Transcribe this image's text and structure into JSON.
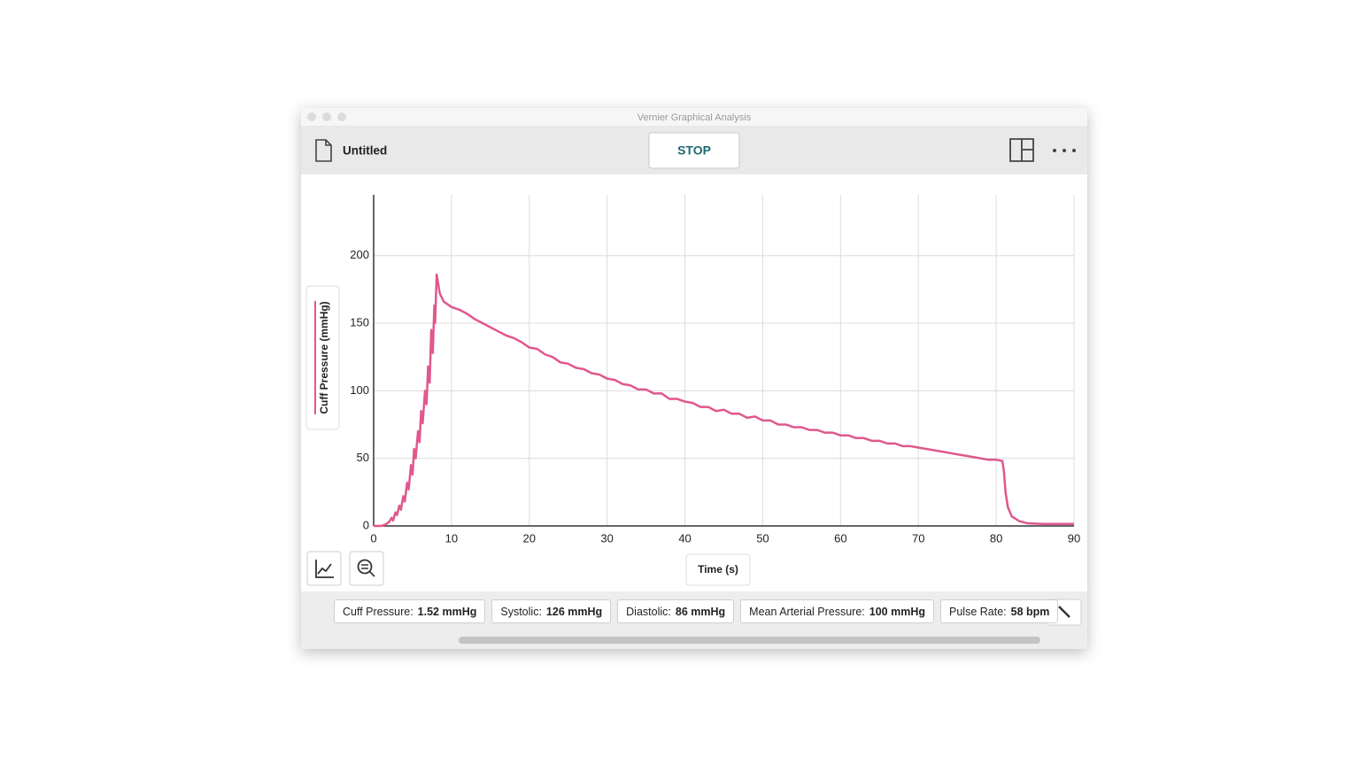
{
  "window": {
    "title": "Vernier Graphical Analysis"
  },
  "toolbar": {
    "file_name": "Untitled",
    "stop_button": "STOP"
  },
  "chart_data": {
    "type": "line",
    "x_label": "Time (s)",
    "y_label": "Cuff Pressure (mmHg)",
    "xlim": [
      0,
      90
    ],
    "ylim": [
      0,
      245
    ],
    "xticks": [
      0,
      10,
      20,
      30,
      40,
      50,
      60,
      70,
      80,
      90
    ],
    "yticks": [
      0,
      50,
      100,
      150,
      200
    ],
    "grid": true,
    "series": [
      {
        "color": "#e0578e",
        "x": [
          0,
          1,
          1.5,
          2,
          2.3,
          2.5,
          2.8,
          3.0,
          3.3,
          3.5,
          3.8,
          4.0,
          4.3,
          4.5,
          4.8,
          5.0,
          5.2,
          5.4,
          5.7,
          5.9,
          6.1,
          6.3,
          6.6,
          6.8,
          7.0,
          7.2,
          7.4,
          7.6,
          7.8,
          7.9,
          8.1,
          8.5,
          9,
          10,
          11,
          12,
          13,
          14,
          15,
          16,
          17,
          18,
          19,
          20,
          21,
          22,
          23,
          24,
          25,
          26,
          27,
          28,
          29,
          30,
          31,
          32,
          33,
          34,
          35,
          36,
          37,
          38,
          39,
          40,
          41,
          42,
          43,
          44,
          45,
          46,
          47,
          48,
          49,
          50,
          51,
          52,
          53,
          54,
          55,
          56,
          57,
          58,
          59,
          60,
          61,
          62,
          63,
          64,
          65,
          66,
          67,
          68,
          69,
          70,
          71,
          72,
          73,
          74,
          75,
          76,
          77,
          78,
          79,
          80,
          80.8,
          81.0,
          81.2,
          81.5,
          82,
          83,
          84,
          86,
          90
        ],
        "values": [
          0,
          0,
          1,
          3,
          6,
          4,
          10,
          8,
          15,
          12,
          22,
          18,
          32,
          27,
          45,
          38,
          57,
          50,
          70,
          62,
          85,
          76,
          100,
          90,
          118,
          106,
          145,
          128,
          163,
          150,
          186,
          172,
          166,
          162,
          160,
          157,
          153,
          150,
          147,
          144,
          141,
          139,
          136,
          132,
          131,
          127,
          125,
          121,
          120,
          117,
          116,
          113,
          112,
          109,
          108,
          105,
          104,
          101,
          101,
          98,
          98,
          94,
          94,
          92,
          91,
          88,
          88,
          85,
          86,
          83,
          83,
          80,
          81,
          78,
          78,
          75,
          75,
          73,
          73,
          71,
          71,
          69,
          69,
          67,
          67,
          65,
          65,
          63,
          63,
          61,
          61,
          59,
          59,
          58,
          57,
          56,
          55,
          54,
          53,
          52,
          51,
          50,
          49,
          49,
          48,
          40,
          25,
          14,
          7,
          3.5,
          2,
          1.5,
          1.5
        ]
      }
    ]
  },
  "meters": [
    {
      "label": "Cuff Pressure:",
      "value": "1.52 mmHg"
    },
    {
      "label": "Systolic:",
      "value": "126 mmHg"
    },
    {
      "label": "Diastolic:",
      "value": "86 mmHg"
    },
    {
      "label": "Mean Arterial Pressure:",
      "value": "100 mmHg"
    },
    {
      "label": "Pulse Rate:",
      "value": "58 bpm"
    }
  ]
}
